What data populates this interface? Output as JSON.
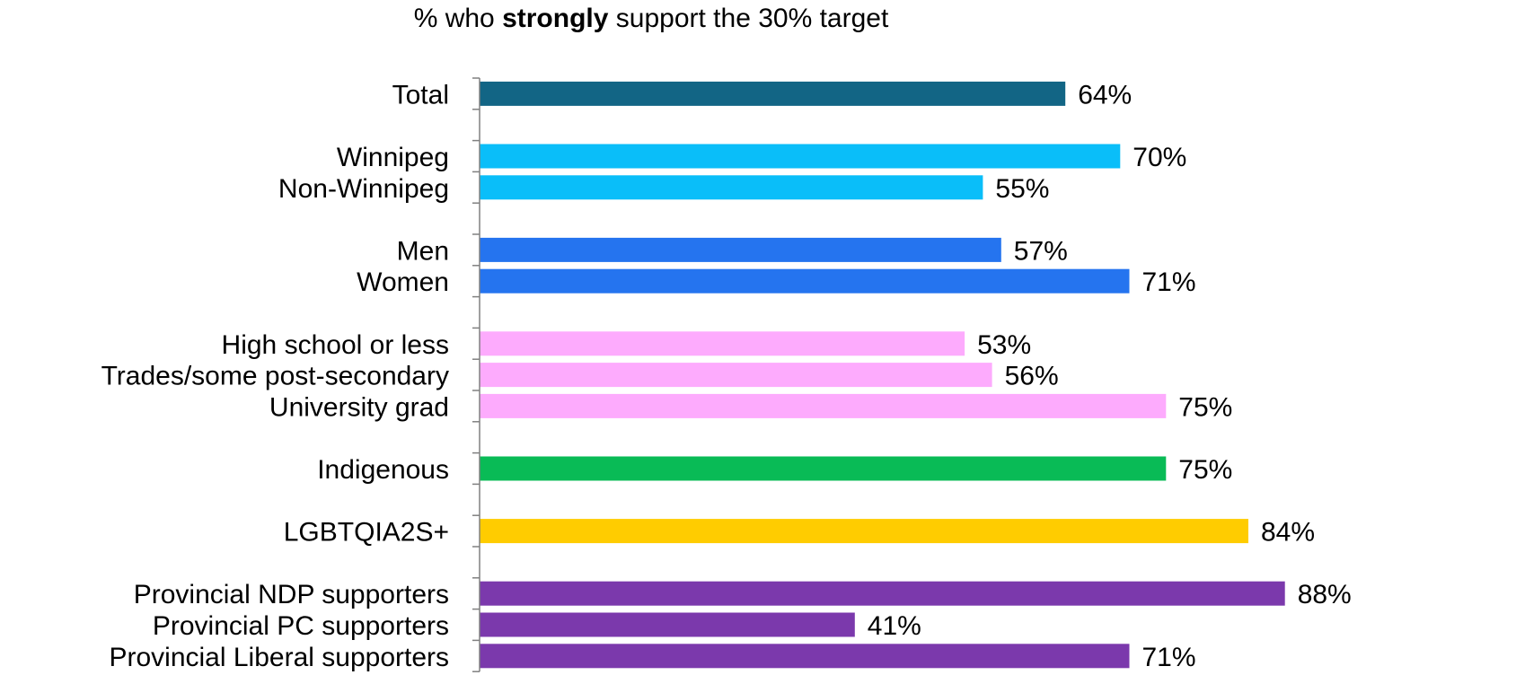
{
  "title": {
    "prefix": "% who ",
    "emphasis": "strongly",
    "suffix": " support the 30% target"
  },
  "chart_data": {
    "type": "bar",
    "orientation": "horizontal",
    "title": "% who strongly support the 30% target",
    "xlim": [
      0,
      100
    ],
    "grid": false,
    "groups": [
      {
        "rows": [
          {
            "label": "Total",
            "value": 64,
            "display": "64%"
          }
        ],
        "color": "#126585"
      },
      {
        "rows": [
          {
            "label": "Winnipeg",
            "value": 70,
            "display": "70%"
          },
          {
            "label": "Non-Winnipeg",
            "value": 55,
            "display": "55%"
          }
        ],
        "color": "#0ABEF9"
      },
      {
        "rows": [
          {
            "label": "Men",
            "value": 57,
            "display": "57%"
          },
          {
            "label": "Women",
            "value": 71,
            "display": "71%"
          }
        ],
        "color": "#2574EF"
      },
      {
        "rows": [
          {
            "label": "High school or less",
            "value": 53,
            "display": "53%"
          },
          {
            "label": "Trades/some post-secondary",
            "value": 56,
            "display": "56%"
          },
          {
            "label": "University grad",
            "value": 75,
            "display": "75%"
          }
        ],
        "color": "#FDABFD"
      },
      {
        "rows": [
          {
            "label": "Indigenous",
            "value": 75,
            "display": "75%"
          }
        ],
        "color": "#09BB56"
      },
      {
        "rows": [
          {
            "label": "LGBTQIA2S+",
            "value": 84,
            "display": "84%"
          }
        ],
        "color": "#FFCC00"
      },
      {
        "rows": [
          {
            "label": "Provincial NDP supporters",
            "value": 88,
            "display": "88%"
          },
          {
            "label": "Provincial PC supporters",
            "value": 41,
            "display": "41%"
          },
          {
            "label": "Provincial Liberal supporters",
            "value": 71,
            "display": "71%"
          }
        ],
        "color": "#7B39AC"
      }
    ]
  }
}
